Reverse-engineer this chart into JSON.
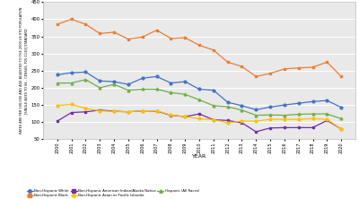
{
  "years": [
    2000,
    2001,
    2002,
    2003,
    2004,
    2005,
    2006,
    2007,
    2008,
    2009,
    2010,
    2011,
    2012,
    2013,
    2014,
    2015,
    2016,
    2017,
    2018,
    2019,
    2020
  ],
  "series": {
    "Non-Hispanic White": {
      "color": "#4472C4",
      "marker": "o",
      "values": [
        238,
        244,
        246,
        220,
        218,
        210,
        228,
        233,
        214,
        218,
        196,
        193,
        158,
        148,
        136,
        144,
        150,
        155,
        160,
        163,
        143
      ]
    },
    "Non-Hispanic Black": {
      "color": "#ED7D31",
      "marker": "s",
      "values": [
        385,
        400,
        385,
        358,
        362,
        342,
        348,
        368,
        344,
        346,
        324,
        310,
        275,
        262,
        233,
        242,
        255,
        258,
        260,
        275,
        233
      ]
    },
    "Non-Hispanic American Indian/Alaska Native": {
      "color": "#7030A0",
      "marker": "s",
      "values": [
        103,
        128,
        130,
        135,
        132,
        130,
        133,
        132,
        120,
        116,
        124,
        107,
        105,
        98,
        72,
        83,
        84,
        84,
        84,
        105,
        80
      ]
    },
    "Non-Hispanic Asian or Pacific Islander": {
      "color": "#FFC000",
      "marker": "o",
      "values": [
        148,
        152,
        140,
        133,
        131,
        130,
        133,
        133,
        121,
        116,
        110,
        107,
        98,
        103,
        103,
        108,
        108,
        108,
        110,
        108,
        80
      ]
    },
    "Hispanic (All Races)": {
      "color": "#70AD47",
      "marker": "^",
      "values": [
        214,
        214,
        224,
        200,
        210,
        193,
        196,
        196,
        186,
        181,
        165,
        148,
        145,
        135,
        120,
        121,
        120,
        123,
        124,
        124,
        110
      ]
    }
  },
  "ylabel": "RATES ARE PER 100,000 AND AGE-ADJUSTED TO THE 2000 US STD POPULATION\n[SINGLE AGES TO 84 - CENSUS: P25-1130] STANDARD",
  "xlabel": "YEAR",
  "ylim": [
    50,
    450
  ],
  "yticks": [
    50,
    100,
    150,
    200,
    250,
    300,
    350,
    400,
    450
  ],
  "plot_bg_color": "#e9e9e9",
  "fig_bg_color": "#ffffff",
  "grid_color": "#ffffff",
  "legend_row1": [
    "Non-Hispanic White",
    "Non-Hispanic Black",
    "Non-Hispanic American Indian/Alaska Native"
  ],
  "legend_row2": [
    "Non-Hispanic Asian or Pacific Islander",
    "Hispanic (All Races)"
  ]
}
